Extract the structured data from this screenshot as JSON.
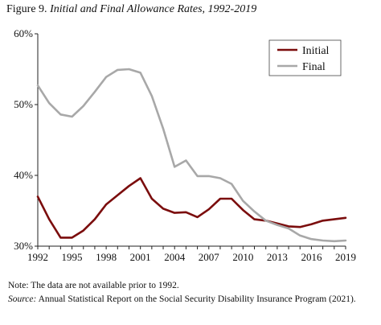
{
  "figure": {
    "label": "Figure 9.",
    "title": "Initial and Final Allowance Rates, 1992-2019"
  },
  "notes": {
    "note_text": "Note: The data are not available prior to 1992.",
    "source_label": "Source:",
    "source_text": "Annual Statistical Report on the Social Security Disability Insurance Program (2021)."
  },
  "chart_data": {
    "type": "line",
    "title": "Initial and Final Allowance Rates, 1992-2019",
    "xlabel": "",
    "ylabel": "",
    "x": [
      1992,
      1993,
      1994,
      1995,
      1996,
      1997,
      1998,
      1999,
      2000,
      2001,
      2002,
      2003,
      2004,
      2005,
      2006,
      2007,
      2008,
      2009,
      2010,
      2011,
      2012,
      2013,
      2014,
      2015,
      2016,
      2017,
      2018,
      2019
    ],
    "xlim": [
      1992,
      2019
    ],
    "ylim": [
      30,
      60
    ],
    "y_ticks": [
      "30%",
      "40%",
      "50%",
      "60%"
    ],
    "y_tick_values": [
      30,
      40,
      50,
      60
    ],
    "x_ticks": [
      "1992",
      "1995",
      "1998",
      "2001",
      "2004",
      "2007",
      "2010",
      "2013",
      "2016",
      "2019"
    ],
    "x_tick_values": [
      1992,
      1995,
      1998,
      2001,
      2004,
      2007,
      2010,
      2013,
      2016,
      2019
    ],
    "grid": false,
    "legend_position": "top-right",
    "series": [
      {
        "name": "Initial",
        "color": "#7b0d0d",
        "values": [
          37.0,
          33.8,
          31.2,
          31.2,
          32.2,
          33.8,
          35.9,
          37.2,
          38.5,
          39.6,
          36.7,
          35.3,
          34.7,
          34.8,
          34.1,
          35.2,
          36.7,
          36.7,
          35.1,
          33.8,
          33.6,
          33.2,
          32.8,
          32.7,
          33.1,
          33.6,
          33.8,
          34.0
        ]
      },
      {
        "name": "Final",
        "color": "#a8a8a8",
        "values": [
          52.7,
          50.2,
          48.6,
          48.3,
          49.8,
          51.8,
          53.9,
          54.9,
          55.0,
          54.5,
          51.2,
          46.6,
          41.2,
          42.1,
          39.9,
          39.9,
          39.6,
          38.8,
          36.4,
          34.9,
          33.6,
          33.0,
          32.5,
          31.5,
          31.0,
          30.8,
          30.7,
          30.8
        ]
      }
    ]
  }
}
